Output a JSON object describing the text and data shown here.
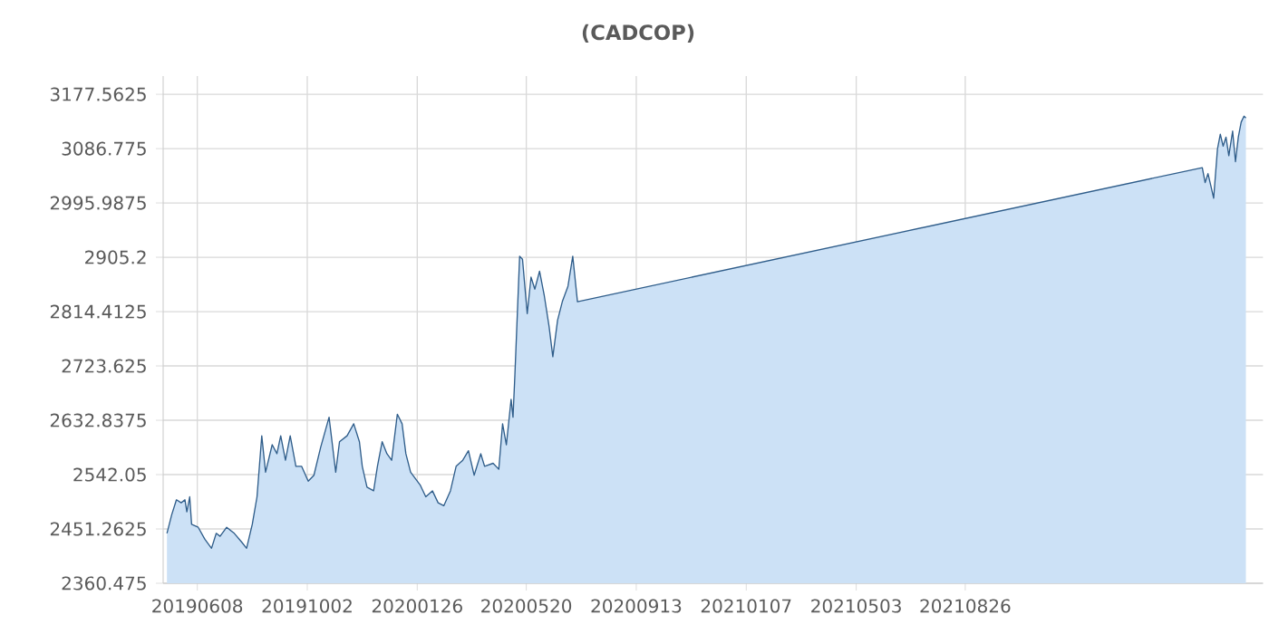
{
  "chart_data": {
    "type": "area",
    "title": "(CADCOP)",
    "x": [
      "2019-05-07",
      "2019-05-12",
      "2019-05-17",
      "2019-05-22",
      "2019-05-26",
      "2019-05-28",
      "2019-05-31",
      "2019-06-02",
      "2019-06-09",
      "2019-06-16",
      "2019-06-23",
      "2019-06-28",
      "2019-07-02",
      "2019-07-09",
      "2019-07-17",
      "2019-07-25",
      "2019-07-30",
      "2019-08-05",
      "2019-08-10",
      "2019-08-15",
      "2019-08-19",
      "2019-08-26",
      "2019-08-31",
      "2019-09-04",
      "2019-09-09",
      "2019-09-14",
      "2019-09-20",
      "2019-09-26",
      "2019-10-03",
      "2019-10-09",
      "2019-10-16",
      "2019-10-25",
      "2019-11-01",
      "2019-11-05",
      "2019-11-13",
      "2019-11-20",
      "2019-11-26",
      "2019-11-29",
      "2019-12-04",
      "2019-12-11",
      "2019-12-15",
      "2019-12-20",
      "2019-12-25",
      "2019-12-30",
      "2020-01-05",
      "2020-01-10",
      "2020-01-14",
      "2020-01-19",
      "2020-01-29",
      "2020-02-04",
      "2020-02-11",
      "2020-02-17",
      "2020-02-23",
      "2020-03-01",
      "2020-03-07",
      "2020-03-14",
      "2020-03-20",
      "2020-03-26",
      "2020-04-02",
      "2020-04-06",
      "2020-04-15",
      "2020-04-21",
      "2020-04-25",
      "2020-04-29",
      "2020-05-04",
      "2020-05-06",
      "2020-05-08",
      "2020-05-13",
      "2020-05-16",
      "2020-05-21",
      "2020-05-25",
      "2020-05-29",
      "2020-06-03",
      "2020-06-08",
      "2020-06-13",
      "2020-06-17",
      "2020-06-22",
      "2020-06-27",
      "2020-07-03",
      "2020-07-08",
      "2020-07-13",
      "2022-05-03",
      "2022-05-06",
      "2022-05-09",
      "2022-05-12",
      "2022-05-15",
      "2022-05-19",
      "2022-05-22",
      "2022-05-25",
      "2022-05-28",
      "2022-05-31",
      "2022-06-04",
      "2022-06-07",
      "2022-06-10",
      "2022-06-13",
      "2022-06-16",
      "2022-06-18"
    ],
    "series": [
      {
        "color": "#2f5d8a",
        "values": [
          2444,
          2475,
          2500,
          2495,
          2500,
          2480,
          2505,
          2459,
          2454,
          2434,
          2419,
          2444,
          2439,
          2454,
          2444,
          2429,
          2419,
          2459,
          2505,
          2607,
          2546,
          2592,
          2577,
          2607,
          2566,
          2607,
          2556,
          2556,
          2531,
          2541,
          2587,
          2638,
          2546,
          2597,
          2607,
          2627,
          2597,
          2556,
          2521,
          2515,
          2556,
          2597,
          2577,
          2566,
          2643,
          2627,
          2577,
          2546,
          2525,
          2505,
          2515,
          2495,
          2490,
          2515,
          2556,
          2566,
          2582,
          2541,
          2577,
          2556,
          2561,
          2551,
          2627,
          2592,
          2668,
          2638,
          2709,
          2907,
          2902,
          2811,
          2872,
          2852,
          2882,
          2841,
          2790,
          2739,
          2800,
          2831,
          2857,
          2907,
          2831,
          3055,
          3030,
          3045,
          3025,
          3004,
          3086,
          3111,
          3091,
          3106,
          3075,
          3116,
          3065,
          3106,
          3131,
          3141,
          3138
        ]
      }
    ],
    "xlim": [
      "2019-05-03",
      "2022-07-06"
    ],
    "xticks": [
      {
        "value": "2019-06-08",
        "label": "20190608"
      },
      {
        "value": "2019-10-02",
        "label": "20191002"
      },
      {
        "value": "2020-01-26",
        "label": "20200126"
      },
      {
        "value": "2020-05-20",
        "label": "20200520"
      },
      {
        "value": "2020-09-13",
        "label": "20200913"
      },
      {
        "value": "2021-01-07",
        "label": "20210107"
      },
      {
        "value": "2021-05-03",
        "label": "20210503"
      },
      {
        "value": "2021-08-26",
        "label": "20210826"
      }
    ],
    "ylim": [
      2360.475,
      3208
    ],
    "yticks": [
      2360.475,
      2451.2625,
      2542.05,
      2632.8375,
      2723.625,
      2814.4125,
      2905.2,
      2995.9875,
      3086.775,
      3177.5625
    ],
    "grid": true
  }
}
